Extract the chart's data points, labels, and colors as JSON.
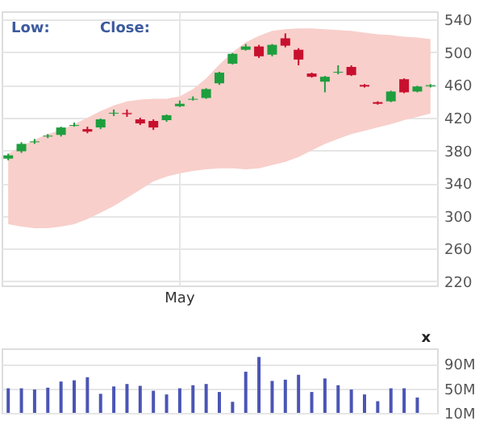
{
  "chart_data": [
    {
      "type": "candlestick",
      "annotations": [
        "Low:",
        "Close:"
      ],
      "categories": [
        null,
        null,
        null,
        null,
        null,
        null,
        null,
        null,
        null,
        null,
        null,
        null,
        null,
        "May",
        null,
        null,
        null,
        null,
        null,
        null,
        null,
        null,
        null,
        null,
        null,
        null,
        null,
        null,
        null,
        null,
        null,
        null,
        null
      ],
      "ohlc": [
        [
          370,
          376,
          368,
          374
        ],
        [
          379,
          390,
          377,
          388
        ],
        [
          390,
          394,
          388,
          391
        ],
        [
          397,
          400,
          395,
          398
        ],
        [
          399,
          409,
          397,
          408
        ],
        [
          410,
          414,
          409,
          411
        ],
        [
          406,
          409,
          401,
          403
        ],
        [
          408,
          419,
          406,
          418
        ],
        [
          425,
          430,
          422,
          426
        ],
        [
          425,
          430,
          421,
          425
        ],
        [
          418,
          420,
          411,
          413
        ],
        [
          416,
          418,
          405,
          408
        ],
        [
          417,
          424,
          415,
          423
        ],
        [
          434,
          441,
          433,
          437
        ],
        [
          442,
          446,
          441,
          443
        ],
        [
          444,
          456,
          443,
          455
        ],
        [
          462,
          476,
          460,
          475
        ],
        [
          486,
          499,
          485,
          498
        ],
        [
          503,
          510,
          502,
          507
        ],
        [
          507,
          509,
          493,
          495
        ],
        [
          497,
          510,
          495,
          509
        ],
        [
          517,
          523,
          506,
          508
        ],
        [
          503,
          505,
          484,
          491
        ],
        [
          474,
          475,
          469,
          470
        ],
        [
          464,
          471,
          451,
          470
        ],
        [
          475,
          484,
          473,
          476
        ],
        [
          482,
          484,
          471,
          472
        ],
        [
          460,
          461,
          457,
          458
        ],
        [
          439,
          440,
          436,
          437
        ],
        [
          440,
          453,
          439,
          452
        ],
        [
          467,
          468,
          450,
          451
        ],
        [
          452,
          459,
          451,
          458
        ],
        [
          459,
          461,
          457,
          459
        ]
      ],
      "colors": [
        "#1e9e3e",
        "#1e9e3e",
        "#1e9e3e",
        "#1e9e3e",
        "#1e9e3e",
        "#1e9e3e",
        "#c8102e",
        "#1e9e3e",
        "#1e9e3e",
        "#c8102e",
        "#c8102e",
        "#c8102e",
        "#1e9e3e",
        "#1e9e3e",
        "#1e9e3e",
        "#1e9e3e",
        "#1e9e3e",
        "#1e9e3e",
        "#1e9e3e",
        "#c8102e",
        "#1e9e3e",
        "#c8102e",
        "#c8102e",
        "#c8102e",
        "#1e9e3e",
        "#1e9e3e",
        "#c8102e",
        "#c8102e",
        "#c8102e",
        "#1e9e3e",
        "#c8102e",
        "#1e9e3e",
        "#1e9e3e"
      ],
      "series": [
        {
          "type": "area",
          "color": "#f8cfcb",
          "values": [
            null,
            null,
            null,
            null,
            null,
            null,
            null,
            null,
            null,
            null,
            null,
            null,
            null,
            null,
            null,
            null,
            null,
            null,
            null,
            null,
            null,
            null,
            null,
            null,
            null,
            null,
            null,
            null,
            null,
            null,
            null,
            null,
            null
          ],
          "upper": [
            376,
            385,
            393,
            400,
            405,
            412,
            420,
            428,
            435,
            440,
            442,
            443,
            443,
            446,
            455,
            468,
            485,
            500,
            512,
            520,
            526,
            528,
            529,
            529,
            528,
            527,
            526,
            524,
            522,
            521,
            519,
            518,
            516
          ],
          "lower": [
            290,
            287,
            285,
            285,
            287,
            290,
            296,
            304,
            312,
            322,
            332,
            342,
            348,
            352,
            355,
            357,
            358,
            358,
            357,
            358,
            362,
            366,
            372,
            380,
            388,
            394,
            400,
            404,
            408,
            412,
            417,
            421,
            425
          ]
        }
      ],
      "ylim": [
        215,
        550
      ],
      "yticks": [
        220,
        260,
        300,
        340,
        380,
        420,
        460,
        500,
        540
      ],
      "grid": true
    },
    {
      "type": "bar",
      "color": "#4a55b5",
      "annotations": [
        "x"
      ],
      "categories": [
        null,
        null,
        null,
        null,
        null,
        null,
        null,
        null,
        null,
        null,
        null,
        null,
        null,
        null,
        null,
        null,
        null,
        null,
        null,
        null,
        null,
        null,
        null,
        null,
        null,
        null,
        null,
        null,
        null,
        null,
        null,
        null,
        null
      ],
      "values": [
        50,
        50,
        48,
        51,
        61,
        63,
        68,
        41,
        53,
        57,
        54,
        46,
        40,
        50,
        55,
        57,
        44,
        28,
        77,
        101,
        62,
        64,
        72,
        44,
        66,
        55,
        48,
        40,
        29,
        50,
        50,
        35,
        null
      ],
      "ylim": [
        10,
        115
      ],
      "yticks": [
        {
          "value": 10,
          "label": "10M"
        },
        {
          "value": 50,
          "label": "50M"
        },
        {
          "value": 90,
          "label": "90M"
        }
      ],
      "grid": "y"
    }
  ]
}
